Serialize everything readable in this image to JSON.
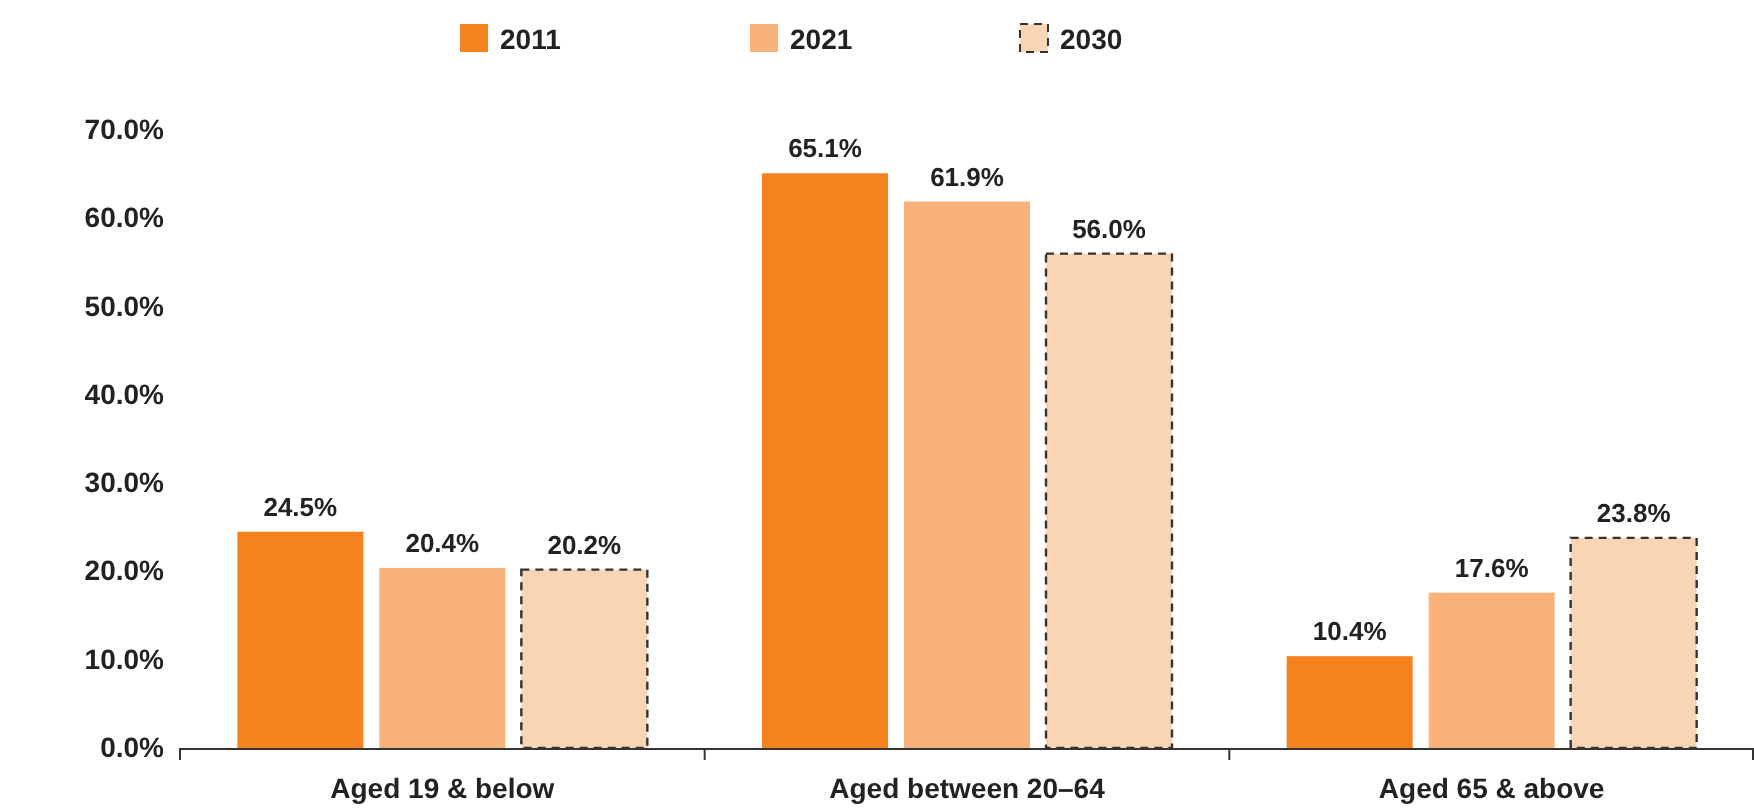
{
  "chart_data": {
    "type": "bar",
    "categories": [
      "Aged 19 & below",
      "Aged between 20–64",
      "Aged 65 & above"
    ],
    "series": [
      {
        "name": "2011",
        "color": "#f5821f",
        "values": [
          24.5,
          65.1,
          10.4
        ],
        "value_labels": [
          "24.5%",
          "65.1%",
          "10.4%"
        ]
      },
      {
        "name": "2021",
        "color": "#f9b27a",
        "values": [
          20.4,
          61.9,
          17.6
        ],
        "value_labels": [
          "20.4%",
          "61.9%",
          "17.6%"
        ]
      },
      {
        "name": "2030",
        "color": "#fad5b5",
        "values": [
          20.2,
          56.0,
          23.8
        ],
        "value_labels": [
          "20.2%",
          "56.0%",
          "23.8%"
        ],
        "line_style": "dashed"
      }
    ],
    "ylim": [
      0,
      70
    ],
    "yticks": [
      {
        "value": 0,
        "label": "0.0%"
      },
      {
        "value": 10,
        "label": "10.0%"
      },
      {
        "value": 20,
        "label": "20.0%"
      },
      {
        "value": 30,
        "label": "30.0%"
      },
      {
        "value": 40,
        "label": "40.0%"
      },
      {
        "value": 50,
        "label": "50.0%"
      },
      {
        "value": 60,
        "label": "60.0%"
      },
      {
        "value": 70,
        "label": "70.0%"
      }
    ],
    "grid": false,
    "legend": "top"
  }
}
